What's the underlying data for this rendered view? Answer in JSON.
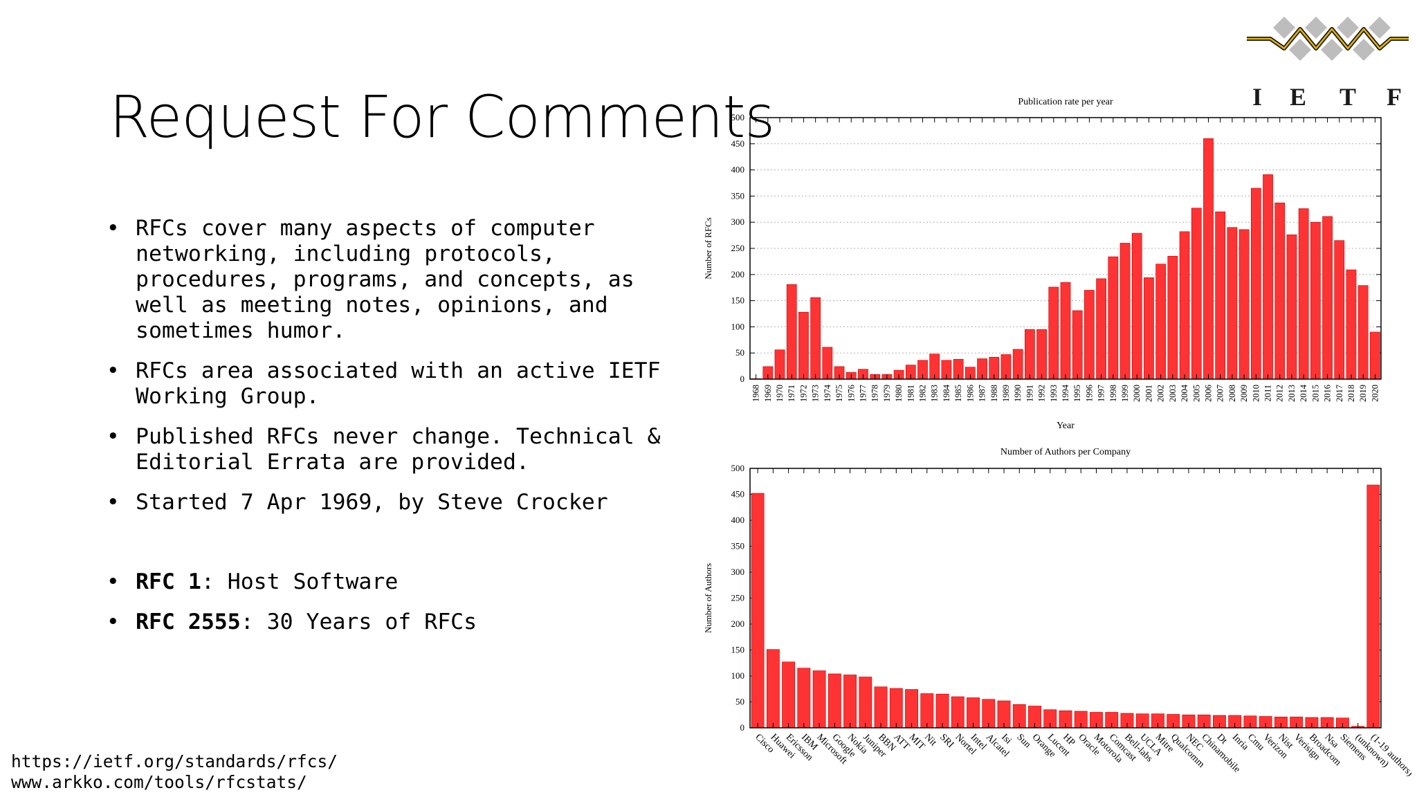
{
  "slide": {
    "title": "Request For Comments",
    "bullets": [
      "RFCs cover many aspects of computer networking, including protocols, procedures, programs, and concepts, as well as meeting notes, opinions, and sometimes humor.",
      "RFCs area associated with an active IETF Working Group.",
      "Published RFCs never change. Technical & Editorial Errata are provided.",
      "Started 7 Apr 1969, by Steve Crocker"
    ],
    "rfc_links": [
      {
        "bold": "RFC 1",
        "text": ": Host Software"
      },
      {
        "bold": "RFC 2555",
        "text": ": 30 Years of RFCs"
      }
    ],
    "urls": [
      "https://ietf.org/standards/rfcs/",
      "www.arkko.com/tools/rfcstats/"
    ]
  },
  "logo": {
    "text": "IETF",
    "colors": {
      "gray": "#bdbdbd",
      "gold": "#e8b400",
      "dark": "#1a1a1a"
    }
  },
  "colors": {
    "bar": "#ff3333",
    "bar_stroke": "#c40000",
    "axis": "#000000",
    "grid": "#b0b0b0"
  },
  "chart_data": [
    {
      "type": "bar",
      "title": "Publication rate per year",
      "xlabel": "Year",
      "ylabel": "Number of RFCs",
      "ylim": [
        0,
        500
      ],
      "yticks": [
        0,
        50,
        100,
        150,
        200,
        250,
        300,
        350,
        400,
        450,
        500
      ],
      "grid": true,
      "categories": [
        "1968",
        "1969",
        "1970",
        "1971",
        "1972",
        "1973",
        "1974",
        "1975",
        "1976",
        "1977",
        "1978",
        "1979",
        "1980",
        "1981",
        "1982",
        "1983",
        "1984",
        "1985",
        "1986",
        "1987",
        "1988",
        "1989",
        "1990",
        "1991",
        "1992",
        "1993",
        "1994",
        "1995",
        "1996",
        "1997",
        "1998",
        "1999",
        "2000",
        "2001",
        "2002",
        "2003",
        "2004",
        "2005",
        "2006",
        "2007",
        "2008",
        "2009",
        "2010",
        "2011",
        "2012",
        "2013",
        "2014",
        "2015",
        "2016",
        "2017",
        "2018",
        "2019",
        "2020"
      ],
      "values": [
        1,
        24,
        56,
        181,
        128,
        156,
        61,
        24,
        13,
        19,
        9,
        9,
        17,
        27,
        36,
        48,
        36,
        38,
        23,
        39,
        42,
        47,
        57,
        95,
        95,
        176,
        185,
        131,
        170,
        192,
        234,
        260,
        279,
        194,
        220,
        235,
        282,
        327,
        460,
        320,
        290,
        286,
        365,
        391,
        337,
        276,
        326,
        300,
        311,
        265,
        209,
        179,
        90
      ]
    },
    {
      "type": "bar",
      "title": "Number of Authors per Company",
      "ylabel": "Number of Authors",
      "ylim": [
        0,
        500
      ],
      "yticks": [
        0,
        50,
        100,
        150,
        200,
        250,
        300,
        350,
        400,
        450,
        500
      ],
      "grid": false,
      "categories": [
        "Cisco",
        "Huawei",
        "Ericsson",
        "IBM",
        "Microsoft",
        "Google",
        "Nokia",
        "Juniper",
        "BBN",
        "ATT",
        "MIT",
        "Nit",
        "SRI",
        "Nortel",
        "Intel",
        "Alcatel",
        "Isi",
        "Sun",
        "Orange",
        "Lucent",
        "HP",
        "Oracle",
        "Motorola",
        "Comcast",
        "Bell-labs",
        "UCLA",
        "Mitre",
        "Qualcomm",
        "NEC",
        "Chinamobile",
        "Dt",
        "Inria",
        "Cmu",
        "Verizon",
        "Nist",
        "Verisign",
        "Broadcom",
        "Nsa",
        "Siemens",
        "(unknown)",
        "(1-19 authors)"
      ],
      "values": [
        452,
        151,
        127,
        115,
        110,
        104,
        102,
        98,
        79,
        76,
        74,
        66,
        65,
        60,
        58,
        55,
        52,
        45,
        42,
        35,
        33,
        32,
        30,
        30,
        28,
        27,
        27,
        26,
        25,
        25,
        24,
        24,
        23,
        22,
        21,
        21,
        20,
        20,
        19,
        3,
        468
      ]
    }
  ]
}
